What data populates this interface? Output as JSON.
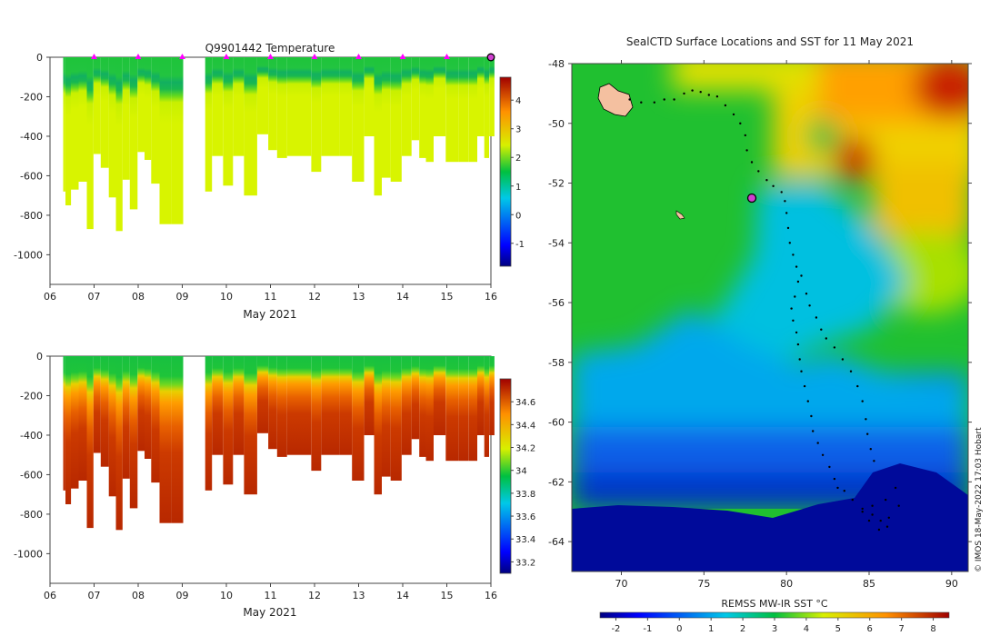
{
  "chart_data": [
    {
      "type": "heatmap",
      "title": "Q9901442  Temperature",
      "xlabel": "May 2021",
      "ylabel": "",
      "x_ticks": [
        "06",
        "07",
        "08",
        "09",
        "10",
        "11",
        "12",
        "13",
        "14",
        "15",
        "16"
      ],
      "xlim": [
        6,
        16
      ],
      "y_ticks": [
        0,
        -200,
        -400,
        -600,
        -800,
        -1000
      ],
      "ylim": [
        -1150,
        0
      ],
      "colorbar": {
        "ticks": [
          4,
          3,
          2,
          1,
          0,
          -1
        ],
        "range": [
          -1.8,
          4.8
        ]
      },
      "surface_markers_days": [
        7,
        8,
        9,
        10,
        11,
        12,
        13,
        14,
        15
      ],
      "current_marker_day": 16,
      "profiles": [
        {
          "day": 6.3,
          "max_depth": 680
        },
        {
          "day": 6.4,
          "max_depth": 750
        },
        {
          "day": 6.55,
          "max_depth": 670
        },
        {
          "day": 6.75,
          "max_depth": 630
        },
        {
          "day": 6.92,
          "max_depth": 870
        },
        {
          "day": 7.05,
          "max_depth": 490
        },
        {
          "day": 7.25,
          "max_depth": 560
        },
        {
          "day": 7.42,
          "max_depth": 710
        },
        {
          "day": 7.57,
          "max_depth": 880
        },
        {
          "day": 7.72,
          "max_depth": 620
        },
        {
          "day": 7.9,
          "max_depth": 770
        },
        {
          "day": 8.07,
          "max_depth": 480
        },
        {
          "day": 8.22,
          "max_depth": 520
        },
        {
          "day": 8.37,
          "max_depth": 640
        },
        {
          "day": 8.6,
          "max_depth": 845
        },
        {
          "day": 8.9,
          "max_depth": 845
        },
        {
          "day": 9.55,
          "max_depth": 680
        },
        {
          "day": 9.8,
          "max_depth": 500
        },
        {
          "day": 10.05,
          "max_depth": 650
        },
        {
          "day": 10.25,
          "max_depth": 500
        },
        {
          "day": 10.55,
          "max_depth": 700
        },
        {
          "day": 10.85,
          "max_depth": 390
        },
        {
          "day": 11.05,
          "max_depth": 470
        },
        {
          "day": 11.25,
          "max_depth": 510
        },
        {
          "day": 11.5,
          "max_depth": 500
        },
        {
          "day": 11.8,
          "max_depth": 500
        },
        {
          "day": 12.05,
          "max_depth": 580
        },
        {
          "day": 12.25,
          "max_depth": 500
        },
        {
          "day": 12.45,
          "max_depth": 500
        },
        {
          "day": 12.7,
          "max_depth": 500
        },
        {
          "day": 13.0,
          "max_depth": 630
        },
        {
          "day": 13.25,
          "max_depth": 400
        },
        {
          "day": 13.45,
          "max_depth": 700
        },
        {
          "day": 13.6,
          "max_depth": 610
        },
        {
          "day": 13.85,
          "max_depth": 630
        },
        {
          "day": 14.1,
          "max_depth": 500
        },
        {
          "day": 14.3,
          "max_depth": 420
        },
        {
          "day": 14.45,
          "max_depth": 510
        },
        {
          "day": 14.6,
          "max_depth": 530
        },
        {
          "day": 14.8,
          "max_depth": 400
        },
        {
          "day": 15.15,
          "max_depth": 530
        },
        {
          "day": 15.4,
          "max_depth": 530
        },
        {
          "day": 15.6,
          "max_depth": 530
        },
        {
          "day": 15.78,
          "max_depth": 400
        },
        {
          "day": 15.92,
          "max_depth": 510
        },
        {
          "day": 16.0,
          "max_depth": 400
        }
      ],
      "data_gaps": [
        [
          9.02,
          9.52
        ]
      ]
    },
    {
      "type": "heatmap",
      "title": "",
      "xlabel": "May 2021",
      "ylabel": "",
      "x_ticks": [
        "06",
        "07",
        "08",
        "09",
        "10",
        "11",
        "12",
        "13",
        "14",
        "15",
        "16"
      ],
      "xlim": [
        6,
        16
      ],
      "y_ticks": [
        0,
        -200,
        -400,
        -600,
        -800,
        -1000
      ],
      "ylim": [
        -1150,
        0
      ],
      "colorbar": {
        "ticks": [
          34.6,
          34.4,
          34.2,
          34,
          33.8,
          33.6,
          33.4,
          33.2
        ],
        "range": [
          33.1,
          34.8
        ]
      },
      "profiles_ref": "same as temperature panel"
    },
    {
      "type": "heatmap",
      "title": "SealCTD Surface Locations and SST for 11 May 2021",
      "xlabel": "",
      "ylabel": "",
      "x_ticks": [
        70,
        75,
        80,
        85,
        90
      ],
      "xlim": [
        67,
        91
      ],
      "y_ticks": [
        -48,
        -50,
        -52,
        -54,
        -56,
        -58,
        -60,
        -62,
        -64
      ],
      "ylim": [
        -65,
        -48
      ],
      "colorbar": {
        "label": "REMSS MW-IR SST °C",
        "ticks": [
          -2,
          -1,
          0,
          1,
          2,
          3,
          4,
          5,
          6,
          7,
          8
        ],
        "range": [
          -2.5,
          8.5
        ]
      },
      "current_position": {
        "lon": 77.9,
        "lat": -52.5
      },
      "track": [
        [
          70.5,
          -49.2
        ],
        [
          71.2,
          -49.3
        ],
        [
          72.0,
          -49.3
        ],
        [
          72.6,
          -49.2
        ],
        [
          73.2,
          -49.2
        ],
        [
          73.8,
          -49.0
        ],
        [
          74.3,
          -48.9
        ],
        [
          74.8,
          -48.95
        ],
        [
          75.3,
          -49.05
        ],
        [
          75.8,
          -49.1
        ],
        [
          76.3,
          -49.4
        ],
        [
          76.8,
          -49.7
        ],
        [
          77.2,
          -50.0
        ],
        [
          77.5,
          -50.4
        ],
        [
          77.6,
          -50.9
        ],
        [
          77.9,
          -51.3
        ],
        [
          78.3,
          -51.6
        ],
        [
          78.8,
          -51.9
        ],
        [
          79.2,
          -52.1
        ],
        [
          79.7,
          -52.3
        ],
        [
          79.9,
          -52.6
        ],
        [
          80.0,
          -53.0
        ],
        [
          80.1,
          -53.5
        ],
        [
          80.2,
          -54.0
        ],
        [
          80.4,
          -54.4
        ],
        [
          80.6,
          -54.8
        ],
        [
          80.7,
          -55.3
        ],
        [
          80.5,
          -55.8
        ],
        [
          80.3,
          -56.2
        ],
        [
          80.4,
          -56.6
        ],
        [
          80.6,
          -57.0
        ],
        [
          80.7,
          -57.4
        ],
        [
          80.8,
          -57.9
        ],
        [
          80.9,
          -58.3
        ],
        [
          81.1,
          -58.8
        ],
        [
          81.3,
          -59.3
        ],
        [
          81.5,
          -59.8
        ],
        [
          81.6,
          -60.3
        ],
        [
          81.9,
          -60.7
        ],
        [
          82.2,
          -61.1
        ],
        [
          82.6,
          -61.5
        ],
        [
          82.9,
          -61.9
        ],
        [
          83.1,
          -62.2
        ],
        [
          83.5,
          -62.3
        ],
        [
          84.0,
          -62.6
        ],
        [
          84.6,
          -62.9
        ],
        [
          85.2,
          -63.1
        ],
        [
          85.7,
          -63.3
        ],
        [
          86.1,
          -63.5
        ],
        [
          85.6,
          -63.6
        ],
        [
          85.0,
          -63.3
        ],
        [
          84.6,
          -63.0
        ],
        [
          85.2,
          -62.8
        ],
        [
          86.0,
          -62.6
        ],
        [
          86.6,
          -62.2
        ],
        [
          86.8,
          -62.8
        ],
        [
          86.2,
          -63.2
        ],
        [
          80.9,
          -55.1
        ],
        [
          81.2,
          -55.7
        ],
        [
          81.4,
          -56.1
        ],
        [
          81.8,
          -56.5
        ],
        [
          82.1,
          -56.9
        ],
        [
          82.4,
          -57.2
        ],
        [
          82.9,
          -57.5
        ],
        [
          83.4,
          -57.9
        ],
        [
          83.9,
          -58.3
        ],
        [
          84.3,
          -58.8
        ],
        [
          84.6,
          -59.3
        ],
        [
          84.8,
          -59.9
        ],
        [
          84.9,
          -60.4
        ],
        [
          85.1,
          -60.9
        ],
        [
          85.3,
          -61.3
        ]
      ],
      "copyright": "© IMOS 18-May-2022 17:03 Hobart"
    }
  ]
}
